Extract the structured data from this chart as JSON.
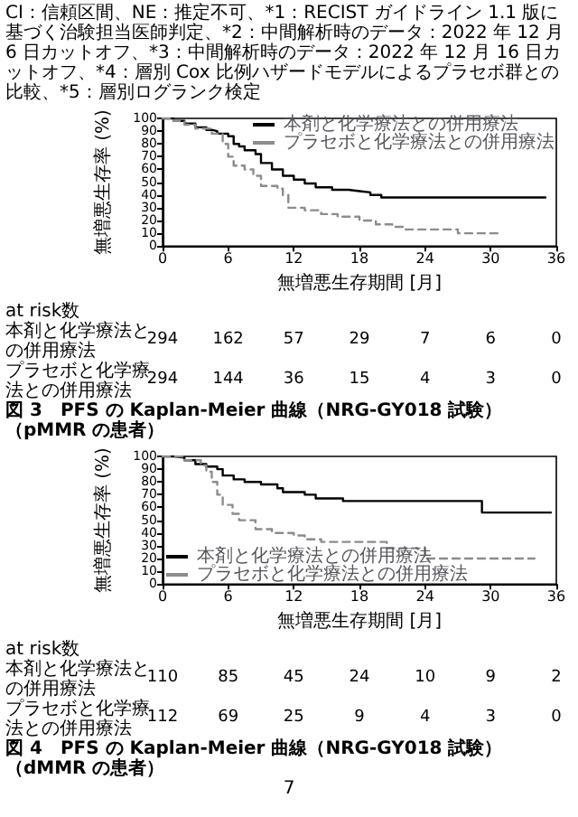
{
  "chart_data": [
    {
      "type": "step",
      "title": "図 3　PFS の Kaplan-Meier 曲線（NRG-GY018 試験）（pMMR の患者）",
      "subtitle": "CI：信頼区間、NE：推定不可、*1：RECIST ガイドライン 1.1 版に基づく治験担当医師判定、*2：中間解析時のデータ：2022 年 12 月 6 日カットオフ、*3：中間解析時のデータ：2022 年 12 月 16 日カットオフ、*4：層別 Cox 比例ハザードモデルによるプラセボ群との比較、*5：層別ログランク検定",
      "xlabel": "無増悪生存期間 [月]",
      "ylabel": "無増悪生存率 (%)",
      "xlim": [
        0,
        36
      ],
      "xticks": [
        0,
        6,
        12,
        18,
        24,
        30,
        36
      ],
      "ylim": [
        0,
        100
      ],
      "yticks": [
        0,
        10,
        20,
        30,
        40,
        50,
        60,
        70,
        80,
        90,
        100
      ],
      "legend": "top right",
      "marker": "none",
      "annotations": [
        "at risk数",
        "本剤と化学療法との併用療法",
        "294",
        "162",
        "57",
        "29",
        "7",
        "6",
        "0",
        "プラセボと化学療法との併用療法",
        "294",
        "144",
        "36",
        "15",
        "4",
        "3",
        "0"
      ],
      "series": [
        {
          "name": "本剤と化学療法との併用療法",
          "color": "#000000",
          "line_style": "solid",
          "x": [
            0,
            1,
            2,
            3,
            4,
            4.5,
            5,
            6,
            6.5,
            7,
            7.5,
            8.5,
            9,
            10,
            11,
            12,
            13,
            14,
            15.5,
            17,
            18,
            19,
            20,
            22,
            35
          ],
          "values": [
            100,
            98,
            96,
            93,
            91,
            90,
            88,
            86,
            80,
            78,
            75,
            72,
            65,
            60,
            55,
            52,
            49,
            46,
            44,
            43,
            42,
            40,
            38,
            38,
            38
          ]
        },
        {
          "name": "プラセボと化学療法との併用療法",
          "color": "#8c8c8c",
          "line_style": "dashed",
          "x": [
            0,
            1,
            2,
            3,
            4.5,
            5.5,
            6,
            6.5,
            7.5,
            8.3,
            9,
            10.5,
            11,
            11.5,
            13,
            14.5,
            16,
            18,
            19.5,
            21,
            22,
            26,
            27,
            31
          ],
          "values": [
            100,
            98,
            95,
            92,
            88,
            80,
            70,
            63,
            60,
            55,
            47,
            45,
            40,
            30,
            28,
            25,
            23,
            20,
            17,
            15,
            13,
            13,
            10,
            10
          ]
        }
      ]
    },
    {
      "type": "step",
      "title": "図 4　PFS の Kaplan-Meier 曲線（NRG-GY018 試験）（dMMR の患者）",
      "xlabel": "無増悪生存期間 [月]",
      "ylabel": "無増悪生存率 (%)",
      "xlim": [
        0,
        36
      ],
      "xticks": [
        0,
        6,
        12,
        18,
        24,
        30,
        36
      ],
      "ylim": [
        0,
        100
      ],
      "yticks": [
        0,
        10,
        20,
        30,
        40,
        50,
        60,
        70,
        80,
        90,
        100
      ],
      "legend": "bottom left",
      "marker": "none",
      "annotations": [
        "at risk数",
        "本剤と化学療法との併用療法",
        "110",
        "85",
        "45",
        "24",
        "10",
        "9",
        "2",
        "プラセボと化学療法との併用療法",
        "112",
        "69",
        "25",
        "9",
        "4",
        "3",
        "0",
        "7"
      ],
      "series": [
        {
          "name": "本剤と化学療法との併用療法",
          "color": "#000000",
          "line_style": "solid",
          "x": [
            0,
            1,
            2,
            3,
            4,
            5,
            5.5,
            6.5,
            7.5,
            9,
            10.5,
            11,
            13,
            14,
            16.5,
            29.2,
            35.5
          ],
          "values": [
            100,
            99,
            97,
            94,
            92,
            90,
            85,
            82,
            80,
            78,
            75,
            72,
            70,
            67,
            65,
            56,
            56
          ]
        },
        {
          "name": "プラセボと化学療法との併用療法",
          "color": "#8c8c8c",
          "line_style": "dashed",
          "x": [
            0,
            2,
            3.5,
            4,
            4.5,
            5,
            5.5,
            6.4,
            7,
            8.5,
            10,
            12,
            13,
            14.5,
            20,
            20.5,
            24,
            34
          ],
          "values": [
            100,
            97,
            93,
            88,
            80,
            70,
            62,
            55,
            50,
            43,
            40,
            38,
            35,
            33,
            33,
            28,
            20,
            20
          ]
        }
      ]
    }
  ]
}
